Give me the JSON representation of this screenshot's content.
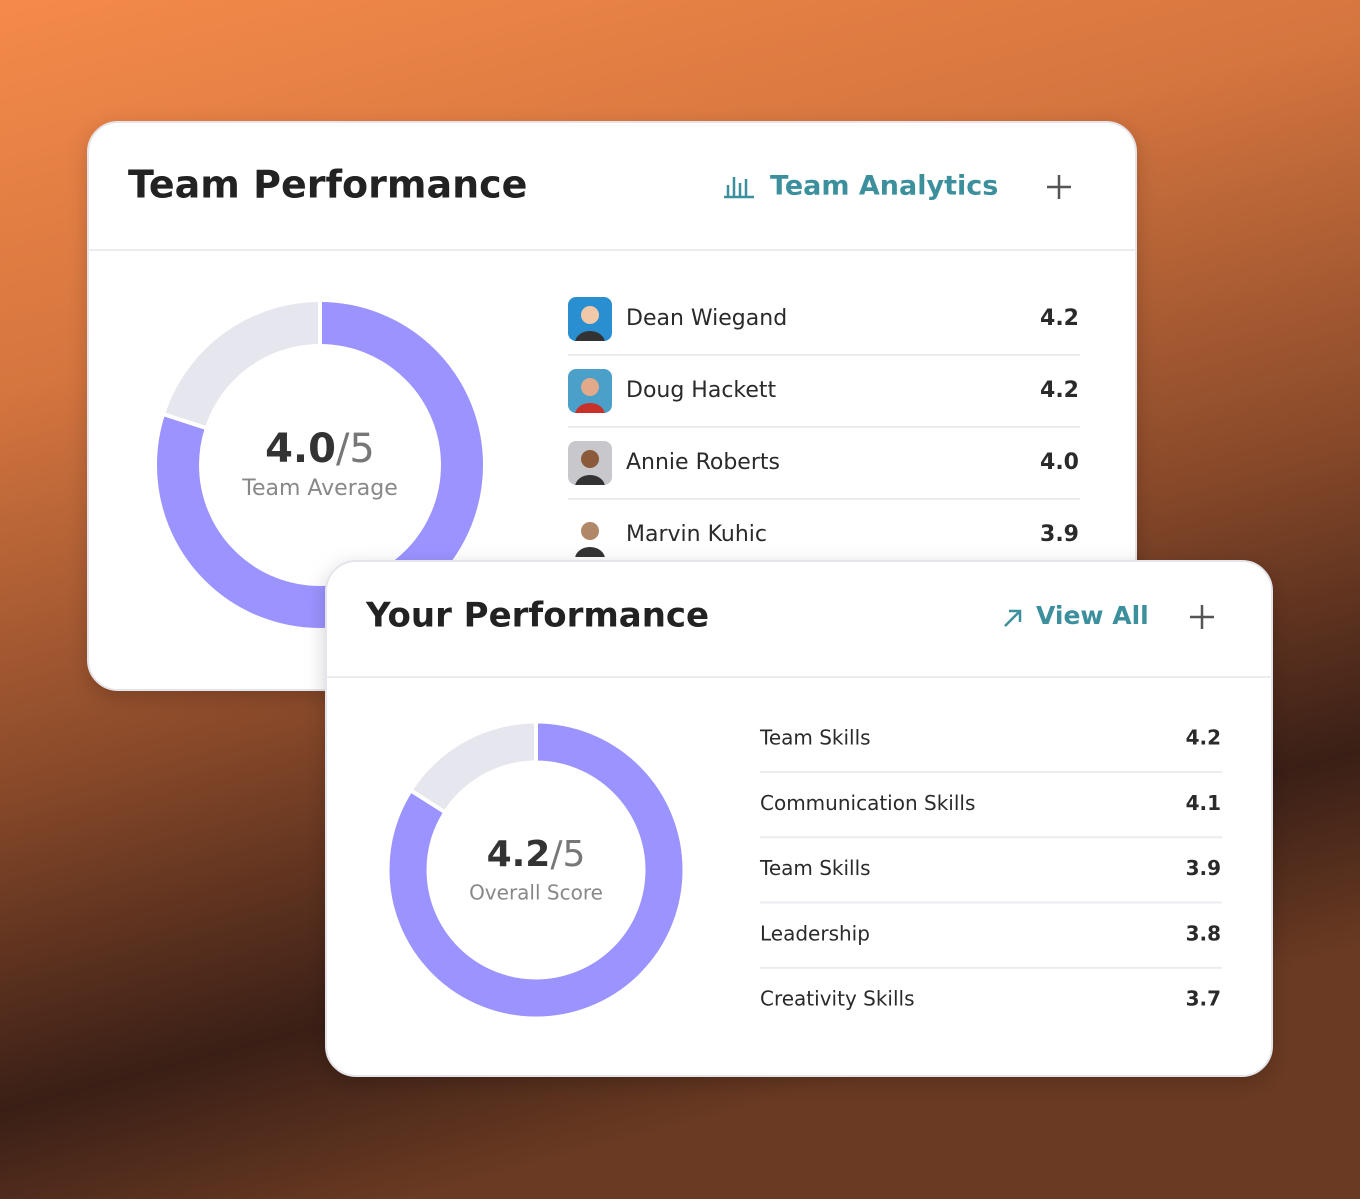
{
  "team_card": {
    "title": "Team Performance",
    "link": "Team Analytics",
    "score": {
      "value": 4.0,
      "label": "4.0"
    },
    "scale": {
      "value": 5,
      "label": "/5"
    },
    "caption": "Team Average",
    "members": [
      {
        "name": "Dean Wiegand",
        "score": "4.2"
      },
      {
        "name": "Doug Hackett",
        "score": "4.2"
      },
      {
        "name": "Annie Roberts",
        "score": "4.0"
      },
      {
        "name": "Marvin Kuhic",
        "score": "3.9"
      }
    ]
  },
  "your_card": {
    "title": "Your Performance",
    "link": "View All",
    "score": {
      "value": 4.2,
      "label": "4.2"
    },
    "scale": {
      "value": 5,
      "label": "/5"
    },
    "caption": "Overall Score",
    "skills": [
      {
        "name": "Team Skills",
        "score": "4.2"
      },
      {
        "name": "Communication Skills",
        "score": "4.1"
      },
      {
        "name": "Team Skills",
        "score": "3.9"
      },
      {
        "name": "Leadership",
        "score": "3.8"
      },
      {
        "name": "Creativity Skills",
        "score": "3.7"
      }
    ]
  }
}
